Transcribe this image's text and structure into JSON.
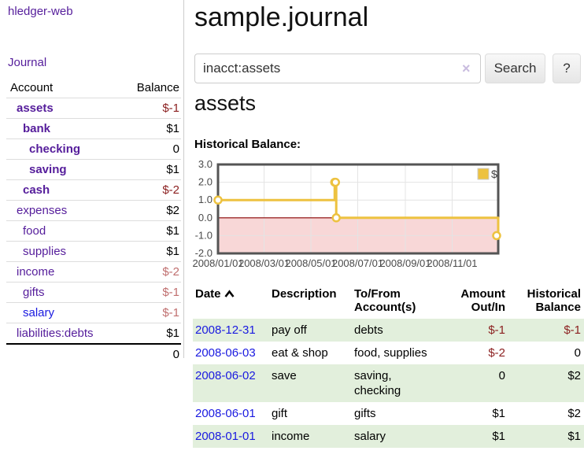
{
  "sidebar": {
    "brand": "hledger-web",
    "nav": {
      "journal": "Journal"
    },
    "accounts_table": {
      "headers": {
        "account": "Account",
        "balance": "Balance"
      },
      "rows": [
        {
          "name": "assets",
          "level": 1,
          "emphasis": true,
          "balance": "$-1",
          "negative": "strong"
        },
        {
          "name": "bank",
          "level": 2,
          "emphasis": true,
          "balance": "$1",
          "negative": null
        },
        {
          "name": "checking",
          "level": 3,
          "emphasis": true,
          "balance": "0",
          "negative": null
        },
        {
          "name": "saving",
          "level": 3,
          "emphasis": true,
          "balance": "$1",
          "negative": null
        },
        {
          "name": "cash",
          "level": 2,
          "emphasis": true,
          "balance": "$-2",
          "negative": "strong"
        },
        {
          "name": "expenses",
          "level": 1,
          "emphasis": false,
          "balance": "$2",
          "negative": null
        },
        {
          "name": "food",
          "level": 2,
          "emphasis": false,
          "balance": "$1",
          "negative": null
        },
        {
          "name": "supplies",
          "level": 2,
          "emphasis": false,
          "balance": "$1",
          "negative": null
        },
        {
          "name": "income",
          "level": 1,
          "emphasis": false,
          "balance": "$-2",
          "negative": "soft"
        },
        {
          "name": "gifts",
          "level": 2,
          "emphasis": false,
          "balance": "$-1",
          "negative": "soft"
        },
        {
          "name": "salary",
          "level": 2,
          "emphasis": false,
          "balance": "$-1",
          "negative": "soft",
          "link": "unvisited"
        },
        {
          "name": "liabilities:debts",
          "level": 1,
          "emphasis": false,
          "balance": "$1",
          "negative": null
        }
      ],
      "total": "0"
    }
  },
  "header": {
    "title": "sample.journal"
  },
  "search": {
    "value": "inacct:assets",
    "clear_icon": "×",
    "button_label": "Search",
    "help_label": "?"
  },
  "account_page": {
    "heading": "assets",
    "chart_label": "Historical Balance:"
  },
  "chart_data": {
    "type": "line",
    "step": true,
    "title": "Historical Balance",
    "series": [
      {
        "name": "$",
        "color": "#EDC240",
        "points": [
          [
            "2008/01/01",
            1
          ],
          [
            "2008/06/01",
            2
          ],
          [
            "2008/06/02",
            2
          ],
          [
            "2008/06/03",
            0
          ],
          [
            "2008/12/31",
            -1
          ]
        ]
      }
    ],
    "xlim": [
      "2008/01/01",
      "2008/12/31"
    ],
    "ylim": [
      -2,
      3
    ],
    "x_ticks": [
      "2008/01/01",
      "2008/03/01",
      "2008/05/01",
      "2008/07/01",
      "2008/09/01",
      "2008/11/01"
    ],
    "y_ticks": [
      "3.0",
      "2.0",
      "1.0",
      "0.0",
      "-1.0",
      "-2.0"
    ],
    "grid": true,
    "legend_position": "top-right",
    "legend_label": "$",
    "colors": {
      "grid": "#e4e4e4",
      "border": "#545454",
      "negative_region": "#f8d7d7",
      "zero_line": "#8b0000",
      "tick_text": "#4a4a4a",
      "marker_fill": "#ffffff"
    }
  },
  "register_table": {
    "headers": {
      "date": "Date",
      "description": "Description",
      "accounts": "To/From\nAccount(s)",
      "amount": "Amount\nOut/In",
      "balance": "Historical\nBalance"
    },
    "sort": {
      "column": "date",
      "direction": "ascending"
    },
    "rows": [
      {
        "date": "2008-12-31",
        "description": "pay off",
        "accounts": "debts",
        "amount": "$-1",
        "amount_negative": true,
        "balance": "$-1",
        "balance_negative": true,
        "shaded": true
      },
      {
        "date": "2008-06-03",
        "description": "eat & shop",
        "accounts": "food, supplies",
        "amount": "$-2",
        "amount_negative": true,
        "balance": "0",
        "balance_negative": false,
        "shaded": false
      },
      {
        "date": "2008-06-02",
        "description": "save",
        "accounts": "saving,\nchecking",
        "amount": "0",
        "amount_negative": false,
        "balance": "$2",
        "balance_negative": false,
        "shaded": true
      },
      {
        "date": "2008-06-01",
        "description": "gift",
        "accounts": "gifts",
        "amount": "$1",
        "amount_negative": false,
        "balance": "$2",
        "balance_negative": false,
        "shaded": false
      },
      {
        "date": "2008-01-01",
        "description": "income",
        "accounts": "salary",
        "amount": "$1",
        "amount_negative": false,
        "balance": "$1",
        "balance_negative": false,
        "shaded": true
      }
    ]
  }
}
